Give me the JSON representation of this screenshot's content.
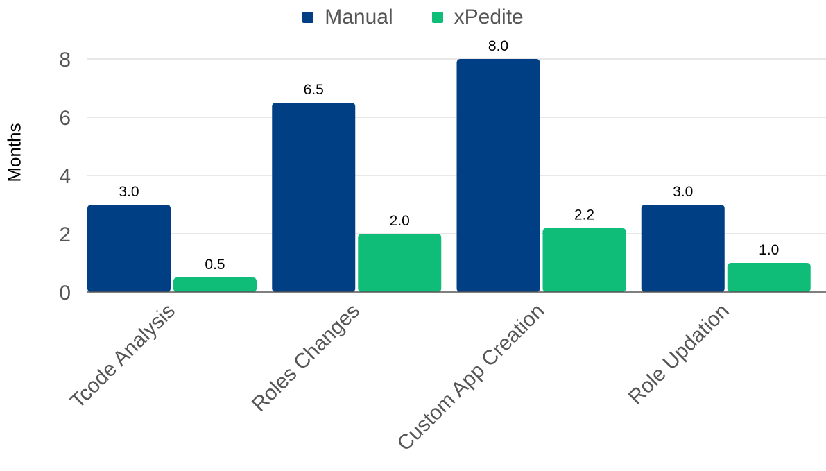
{
  "chart_data": {
    "type": "bar",
    "categories": [
      "Tcode Analysis",
      "Roles Changes",
      "Custom App Creation",
      "Role Updation"
    ],
    "series": [
      {
        "name": "Manual",
        "values": [
          3.0,
          6.5,
          8.0,
          3.0
        ],
        "labels": [
          "3.0",
          "6.5",
          "8.0",
          "3.0"
        ],
        "color": "#003f83"
      },
      {
        "name": "xPedite",
        "values": [
          0.5,
          2.0,
          2.2,
          1.0
        ],
        "labels": [
          "0.5",
          "2.0",
          "2.2",
          "1.0"
        ],
        "color": "#0fbd78"
      }
    ],
    "xlabel": "",
    "ylabel": "Months",
    "ylim": [
      0,
      8
    ],
    "yticks": [
      "0",
      "2",
      "4",
      "6",
      "8"
    ],
    "grid": true,
    "legend_position": "top-center"
  }
}
